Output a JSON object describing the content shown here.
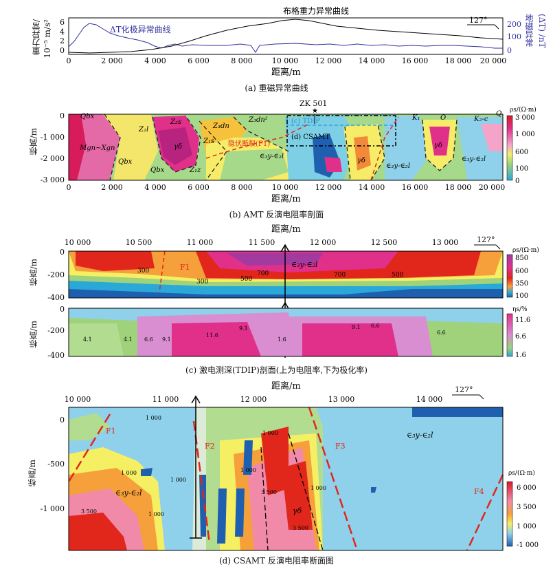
{
  "panel_a": {
    "title_curve1": "布格重力异常曲线",
    "title_curve2": "ΔT化极异常曲线",
    "y_left_label1": "重力异常/",
    "y_left_label2": "10⁻⁵ m/s²",
    "y_right_label1": "地磁异常",
    "y_right_label2": "(ΔT) /nT",
    "y_left_ticks": [
      "6",
      "4",
      "2",
      "0"
    ],
    "y_right_ticks": [
      "200",
      "100",
      "0"
    ],
    "x_ticks": [
      "0",
      "2 000",
      "4 000",
      "6 000",
      "8 000",
      "10 000",
      "12 000",
      "14 000",
      "16 000",
      "18 000",
      "20 000"
    ],
    "x_title": "距离/m",
    "azimuth": "127°",
    "caption": "(a) 重磁异常曲线"
  },
  "panel_b": {
    "y_label": "标高/m",
    "y_ticks": [
      "0",
      "-1 000",
      "-2 000",
      "-3 000"
    ],
    "x_ticks": [
      "0",
      "2 000",
      "4 000",
      "6 000",
      "8 000",
      "10 000",
      "12 000",
      "14 000",
      "16 000",
      "18 000",
      "20 000"
    ],
    "x_title": "距离/m",
    "borehole": "ZK 501",
    "box_c": "(c) TDIP",
    "box_d": "(d) CSAMT",
    "labels": [
      "Qbx",
      "Z₂l",
      "Z₂s",
      "Z₃dn",
      "Z₃dn²",
      "Mgn~Xgn",
      "Qbx",
      "γδ",
      "Qbx",
      "Z₁s",
      "Z₁z",
      "隐伏断裂(F1)",
      "∈₃y-∈₂l",
      "γδ",
      "K₁",
      "O",
      "γδ",
      "∈₃y-∈₂l",
      "∈₃y-∈₂l",
      "K₂-c",
      "Q"
    ],
    "legend_title": "ρs/(Ω·m)",
    "legend_ticks": [
      "3 000",
      "1 000",
      "600",
      "100",
      "0"
    ],
    "caption": "(b) AMT 反演电阻率剖面"
  },
  "panel_c": {
    "x_title": "距离/m",
    "x_ticks": [
      "10 000",
      "10 500",
      "11 000",
      "11 500",
      "12 000",
      "12 500",
      "13 000"
    ],
    "azimuth": "127°",
    "y_label": "标高/m",
    "y_ticks_top": [
      "0",
      "-200",
      "-400"
    ],
    "y_ticks_bottom": [
      "0",
      "-200",
      "-400"
    ],
    "top_labels": [
      "F1",
      "300",
      "300",
      "500",
      "700",
      "700",
      "500",
      "∈₃y-∈₂l"
    ],
    "bottom_labels": [
      "4.1",
      "4.1",
      "6.6",
      "9.1",
      "11.6",
      "9.1",
      "1.6",
      "9.1",
      "6.6",
      "6.6"
    ],
    "legend_top_title": "ρs/(Ω·m)",
    "legend_top_ticks": [
      "850",
      "600",
      "350",
      "100"
    ],
    "legend_bottom_title": "ηs/%",
    "legend_bottom_ticks": [
      "11.6",
      "6.6",
      "1.6"
    ],
    "caption": "(c) 激电测深(TDIP)剖面(上为电阻率,下为极化率)"
  },
  "panel_d": {
    "x_title": "距离/m",
    "x_ticks": [
      "10 000",
      "11 000",
      "12 000",
      "13 000",
      "14 000"
    ],
    "azimuth": "127°",
    "y_label": "标高/m",
    "y_ticks": [
      "0",
      "-500",
      "-1 000"
    ],
    "labels": [
      "F1",
      "F2",
      "F3",
      "F4",
      "∈₃y-∈₂l",
      "∈₃y-∈₂l",
      "γδ",
      "1 000",
      "1 000",
      "3 500",
      "1 000",
      "1 000",
      "3 500",
      "3 500",
      "1 000",
      "1 000",
      "1 000"
    ],
    "legend_title": "ρs/(Ω·m)",
    "legend_ticks": [
      "6 000",
      "3 500",
      "1 000",
      "-1 000"
    ],
    "caption": "(d) CSAMT 反演电阻率断面图"
  },
  "colors": {
    "red": "#e1261c",
    "magenta": "#e02f8a",
    "orange": "#f5a03a",
    "yellow": "#f5ef64",
    "green": "#9fd27a",
    "cyan": "#8fd1ea",
    "blue": "#1f5fb0"
  }
}
